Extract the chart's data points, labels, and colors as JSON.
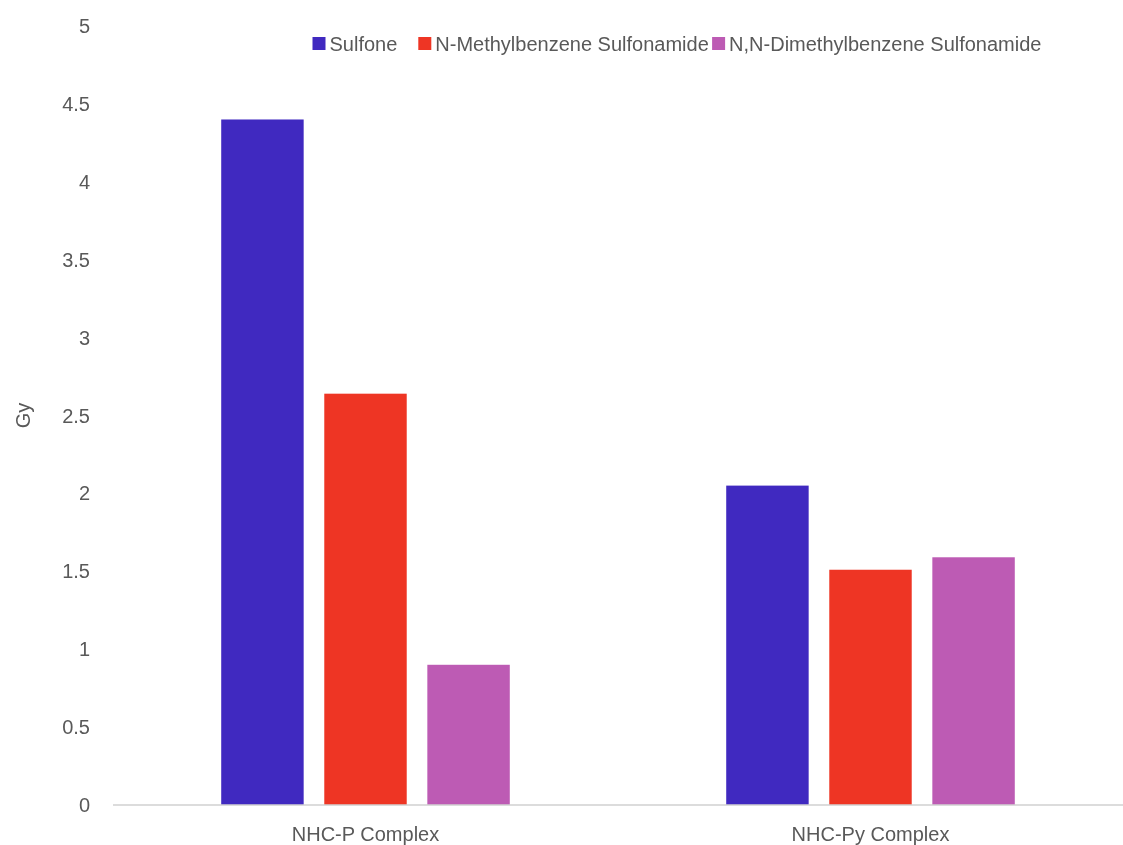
{
  "chart_data": {
    "type": "bar",
    "ylabel": "Gy",
    "categories": [
      "NHC-P Complex",
      "NHC-Py Complex"
    ],
    "series": [
      {
        "name": "Sulfone",
        "color": "#4029c0",
        "values": [
          4.4,
          2.05
        ]
      },
      {
        "name": "N-Methylbenzene Sulfonamide",
        "color": "#ee3524",
        "values": [
          2.64,
          1.51
        ]
      },
      {
        "name": "N,N-Dimethylbenzene Sulfonamide",
        "color": "#bd5bb4",
        "values": [
          0.9,
          1.59
        ]
      }
    ],
    "ylim": [
      0,
      5
    ],
    "yticks": [
      0,
      0.5,
      1,
      1.5,
      2,
      2.5,
      3,
      3.5,
      4,
      4.5,
      5
    ],
    "grid": false,
    "legend": "top"
  }
}
